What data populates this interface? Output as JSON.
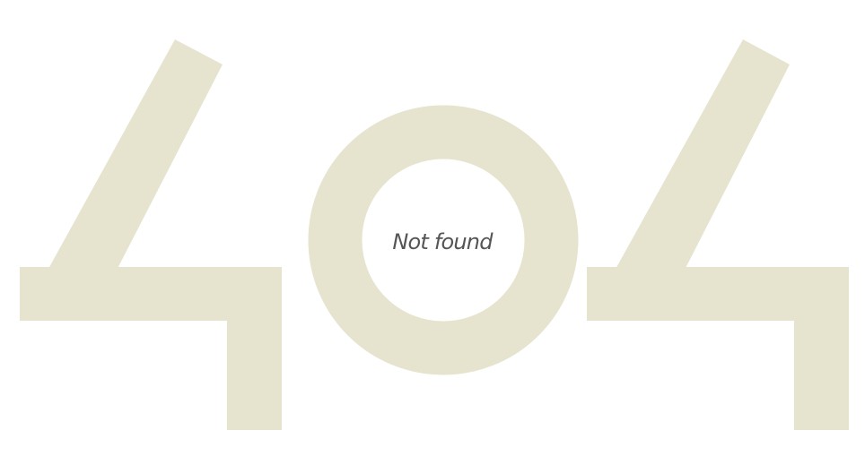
{
  "error": {
    "message": "Not found",
    "graphic_label": "404"
  },
  "colors": {
    "background": "#ffffff",
    "graphic_fill": "#e6e4cf",
    "message_text": "#555555"
  }
}
